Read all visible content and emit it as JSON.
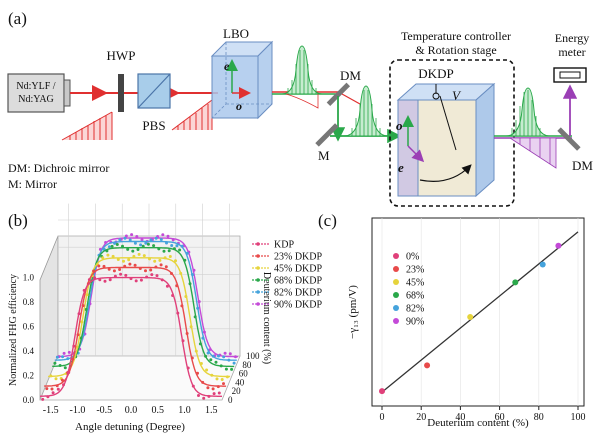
{
  "panel_a": {
    "tag": "(a)",
    "laser_line1": "Nd:YLF /",
    "laser_line2": "Nd:YAG",
    "hwp": "HWP",
    "pbs": "PBS",
    "lbo": "LBO",
    "e_axis": "e",
    "o_axis": "o",
    "dm1": "DM",
    "mirror": "M",
    "controller_line1": "Temperature controller",
    "controller_line2": "& Rotation stage",
    "dkdp": "DKDP",
    "voltage": "V",
    "energy_line1": "Energy",
    "energy_line2": "meter",
    "dm2": "DM",
    "legend_dm": "DM: Dichroic mirror",
    "legend_m": "M: Mirror",
    "colors": {
      "fundamental": "#e03030",
      "second": "#2aa84a",
      "third": "#9b3fb5",
      "crystal": "#aac8ec"
    }
  },
  "panel_b": {
    "tag": "(b)",
    "xlabel": "Angle detuning (Degree)",
    "ylabel": "Normalized FHG efficiency",
    "zlabel": "Deuterium content (%)",
    "xticks": [
      "-1.5",
      "-1.0",
      "-0.5",
      "0.0",
      "0.5",
      "1.0",
      "1.5"
    ],
    "yticks": [
      "0.0",
      "0.2",
      "0.4",
      "0.6",
      "0.8",
      "1.0"
    ],
    "zticks": [
      "0",
      "20",
      "40",
      "60",
      "80",
      "100"
    ]
  },
  "panel_c": {
    "tag": "(c)",
    "xlabel": "Deuterium content (%)",
    "ylabel": "−γ₁₃ (pm/V)",
    "xticks": [
      "0",
      "20",
      "40",
      "60",
      "80",
      "100"
    ]
  },
  "chart_data": [
    {
      "type": "line",
      "x_range": [
        -1.7,
        1.7
      ],
      "y_range": [
        0,
        1.0
      ],
      "z_range": [
        0,
        100
      ],
      "legend_position": "top-right",
      "series": [
        {
          "name": "KDP",
          "deuterium": 0,
          "color": "#e0407a",
          "plateau": [
            -1.05,
            0.95
          ],
          "value": 1.0
        },
        {
          "name": "23% DKDP",
          "deuterium": 23,
          "color": "#e84a4a",
          "plateau": [
            -1.05,
            0.95
          ],
          "value": 1.0
        },
        {
          "name": "45% DKDP",
          "deuterium": 45,
          "color": "#e6d43c",
          "plateau": [
            -1.05,
            0.95
          ],
          "value": 1.0
        },
        {
          "name": "68% DKDP",
          "deuterium": 68,
          "color": "#2aa84a",
          "plateau": [
            -1.05,
            0.95
          ],
          "value": 1.0
        },
        {
          "name": "82% DKDP",
          "deuterium": 82,
          "color": "#45a3dc",
          "plateau": [
            -1.05,
            0.95
          ],
          "value": 1.0
        },
        {
          "name": "90% DKDP",
          "deuterium": 90,
          "color": "#c44ad8",
          "plateau": [
            -1.05,
            0.95
          ],
          "value": 1.0
        }
      ]
    },
    {
      "type": "scatter",
      "x_range": [
        0,
        100
      ],
      "y_range": [
        9,
        27
      ],
      "legend_position": "top-left",
      "fit_line": {
        "x": [
          0,
          100
        ],
        "y": [
          10.0,
          26.2
        ]
      },
      "points": [
        {
          "name": "0%",
          "x": 0,
          "y": 10.1,
          "color": "#e0407a"
        },
        {
          "name": "23%",
          "x": 23,
          "y": 12.7,
          "color": "#e84a4a"
        },
        {
          "name": "45%",
          "x": 45,
          "y": 17.6,
          "color": "#e6d43c"
        },
        {
          "name": "68%",
          "x": 68,
          "y": 21.1,
          "color": "#2aa84a"
        },
        {
          "name": "82%",
          "x": 82,
          "y": 22.9,
          "color": "#45a3dc"
        },
        {
          "name": "90%",
          "x": 90,
          "y": 24.8,
          "color": "#c44ad8"
        }
      ]
    }
  ]
}
